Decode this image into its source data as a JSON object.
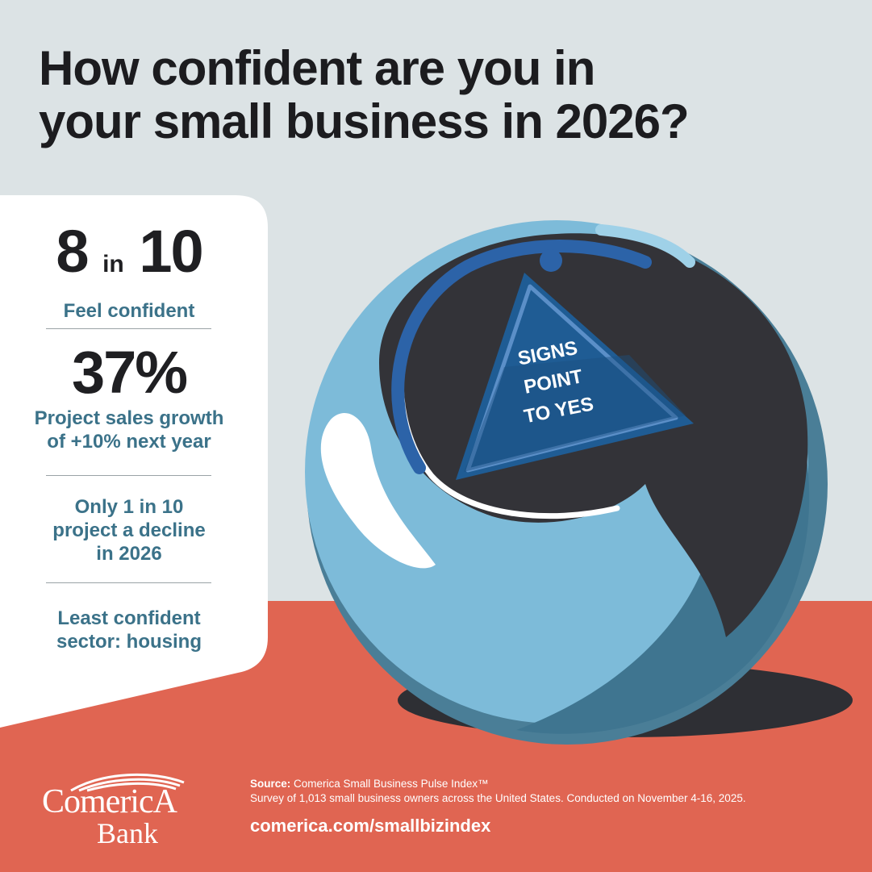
{
  "headline": {
    "line1": "How confident are you in",
    "line2": "your small business in 2026?"
  },
  "stats": {
    "confident": {
      "num1": "8",
      "connector": "in",
      "num2": "10",
      "caption": "Feel confident"
    },
    "growth": {
      "value": "37%",
      "caption_line1": "Project sales growth",
      "caption_line2": "of +10% next year"
    },
    "decline": {
      "line1": "Only 1 in 10",
      "line2": "project a decline",
      "line3": "in 2026"
    },
    "sector": {
      "line1": "Least confident",
      "line2": "sector: housing"
    }
  },
  "magic_ball": {
    "answer_lines": [
      "SIGNS",
      "POINT",
      "TO YES"
    ]
  },
  "footer": {
    "source_label": "Source:",
    "source_name": "Comerica Small Business Pulse Index™",
    "survey_note": "Survey of 1,013 small business owners across the United States. Conducted on November 4-16, 2025.",
    "url": "comerica.com/smallbizindex"
  },
  "logo": {
    "word1": "ComericA",
    "word2": "Bank"
  },
  "colors": {
    "background_top": "#dce3e5",
    "background_bottom": "#e06552",
    "text_dark": "#1c1c1f",
    "accent_teal": "#3b7289",
    "ball_blue": "#7dbbd9",
    "ball_dark": "#333338",
    "sign_blue": "#1f5c94"
  }
}
